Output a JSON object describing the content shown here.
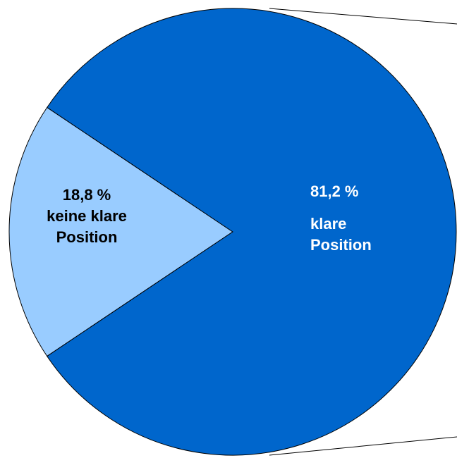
{
  "chart_data": {
    "type": "pie",
    "categories": [
      "keine klare Position",
      "klare Position"
    ],
    "values": [
      18.8,
      81.2
    ],
    "value_labels": [
      "18,8 %",
      "81,2 %"
    ],
    "colors": [
      "#99ccff",
      "#0066cc"
    ]
  }
}
